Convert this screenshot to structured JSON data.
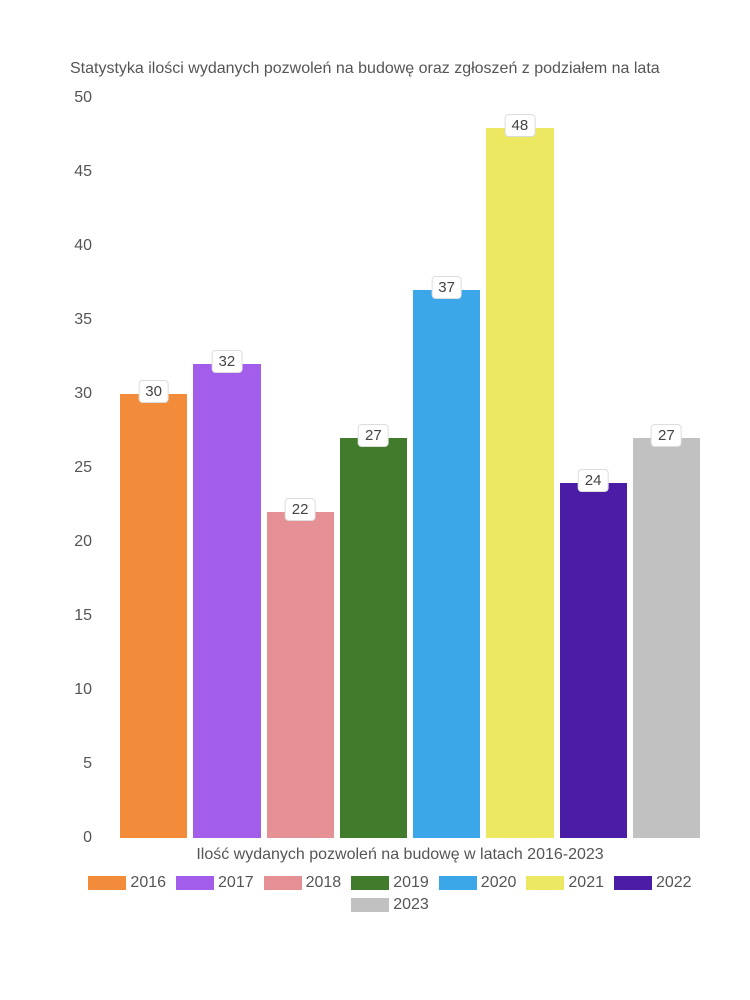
{
  "chart": {
    "type": "bar",
    "title": "Statystyka ilości wydanych pozwoleń na budowę oraz zgłoszeń z podziałem na lata",
    "x_axis_title": "Ilość wydanych pozwoleń na budowę w latach 2016-2023",
    "ylim": [
      0,
      50
    ],
    "ytick_step": 5,
    "yticks": [
      0,
      5,
      10,
      15,
      20,
      25,
      30,
      35,
      40,
      45,
      50
    ],
    "background_color": "#ffffff",
    "text_color": "#555555",
    "title_fontsize": 16,
    "label_fontsize": 16,
    "bar_gap": 6,
    "data": [
      {
        "year": "2016",
        "value": 30,
        "color": "#f28c3a"
      },
      {
        "year": "2017",
        "value": 32,
        "color": "#a25deb"
      },
      {
        "year": "2018",
        "value": 22,
        "color": "#e59094"
      },
      {
        "year": "2019",
        "value": 27,
        "color": "#417c2c"
      },
      {
        "year": "2020",
        "value": 37,
        "color": "#3ca7e8"
      },
      {
        "year": "2021",
        "value": 48,
        "color": "#ede862"
      },
      {
        "year": "2022",
        "value": 24,
        "color": "#4b1ca6"
      },
      {
        "year": "2023",
        "value": 27,
        "color": "#c1c1c1"
      }
    ],
    "value_label_bg": "#ffffff",
    "value_label_border": "#dddddd"
  }
}
